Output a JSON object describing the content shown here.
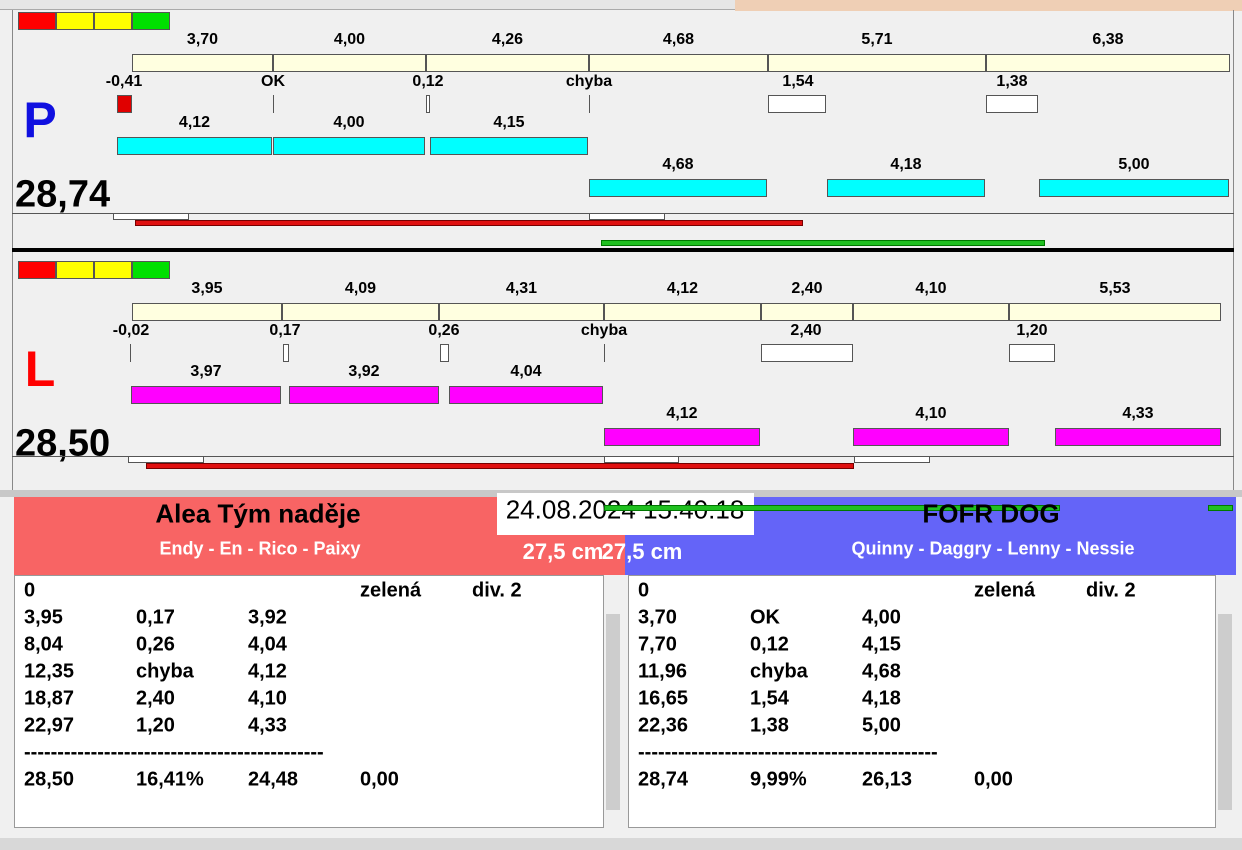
{
  "lanes": [
    {
      "letter": "P",
      "total": "28,74",
      "split_times": [
        "3,70",
        "4,00",
        "4,26",
        "4,68",
        "5,71",
        "6,38"
      ],
      "crossings": [
        "-0,41",
        "OK",
        "0,12",
        "chyba",
        "1,54",
        "1,38"
      ],
      "dog_times_row1": [
        "4,12",
        "4,00",
        "4,15"
      ],
      "dog_times_row2": [
        "4,68",
        "4,18",
        "5,00"
      ]
    },
    {
      "letter": "L",
      "total": "28,50",
      "split_times": [
        "3,95",
        "4,09",
        "4,31",
        "4,12",
        "2,40",
        "4,10",
        "5,53"
      ],
      "crossings": [
        "-0,02",
        "0,17",
        "0,26",
        "chyba",
        "2,40",
        "1,20"
      ],
      "dog_times_row1": [
        "3,97",
        "3,92",
        "4,04"
      ],
      "dog_times_row2": [
        "4,12",
        "4,10",
        "4,33"
      ]
    }
  ],
  "timestamp": "24.08.2024 15:40:18",
  "teams": [
    {
      "name": "Alea Tým naděje",
      "dogs": "Endy - En - Rico - Paixy",
      "height": "27,5 cm",
      "log": {
        "header": [
          "0",
          "zelená",
          "div. 2"
        ],
        "rows": [
          [
            "3,95",
            "0,17",
            "3,92"
          ],
          [
            "8,04",
            "0,26",
            "4,04"
          ],
          [
            "12,35",
            "chyba",
            "4,12"
          ],
          [
            "18,87",
            "2,40",
            "4,10"
          ],
          [
            "22,97",
            "1,20",
            "4,33"
          ]
        ],
        "separator": "---------------------------------------------",
        "summary": [
          "28,50",
          "16,41%",
          "24,48",
          "0,00"
        ]
      }
    },
    {
      "name": "FOFR DOG",
      "dogs": "Quinny - Daggry - Lenny - Nessie",
      "height": "27,5 cm",
      "log": {
        "header": [
          "0",
          "zelená",
          "div. 2"
        ],
        "rows": [
          [
            "3,70",
            "OK",
            "4,00"
          ],
          [
            "7,70",
            "0,12",
            "4,15"
          ],
          [
            "11,96",
            "chyba",
            "4,68"
          ],
          [
            "16,65",
            "1,54",
            "4,18"
          ],
          [
            "22,36",
            "1,38",
            "5,00"
          ]
        ],
        "separator": "---------------------------------------------",
        "summary": [
          "28,74",
          "9,99%",
          "26,13",
          "0,00"
        ]
      }
    }
  ]
}
